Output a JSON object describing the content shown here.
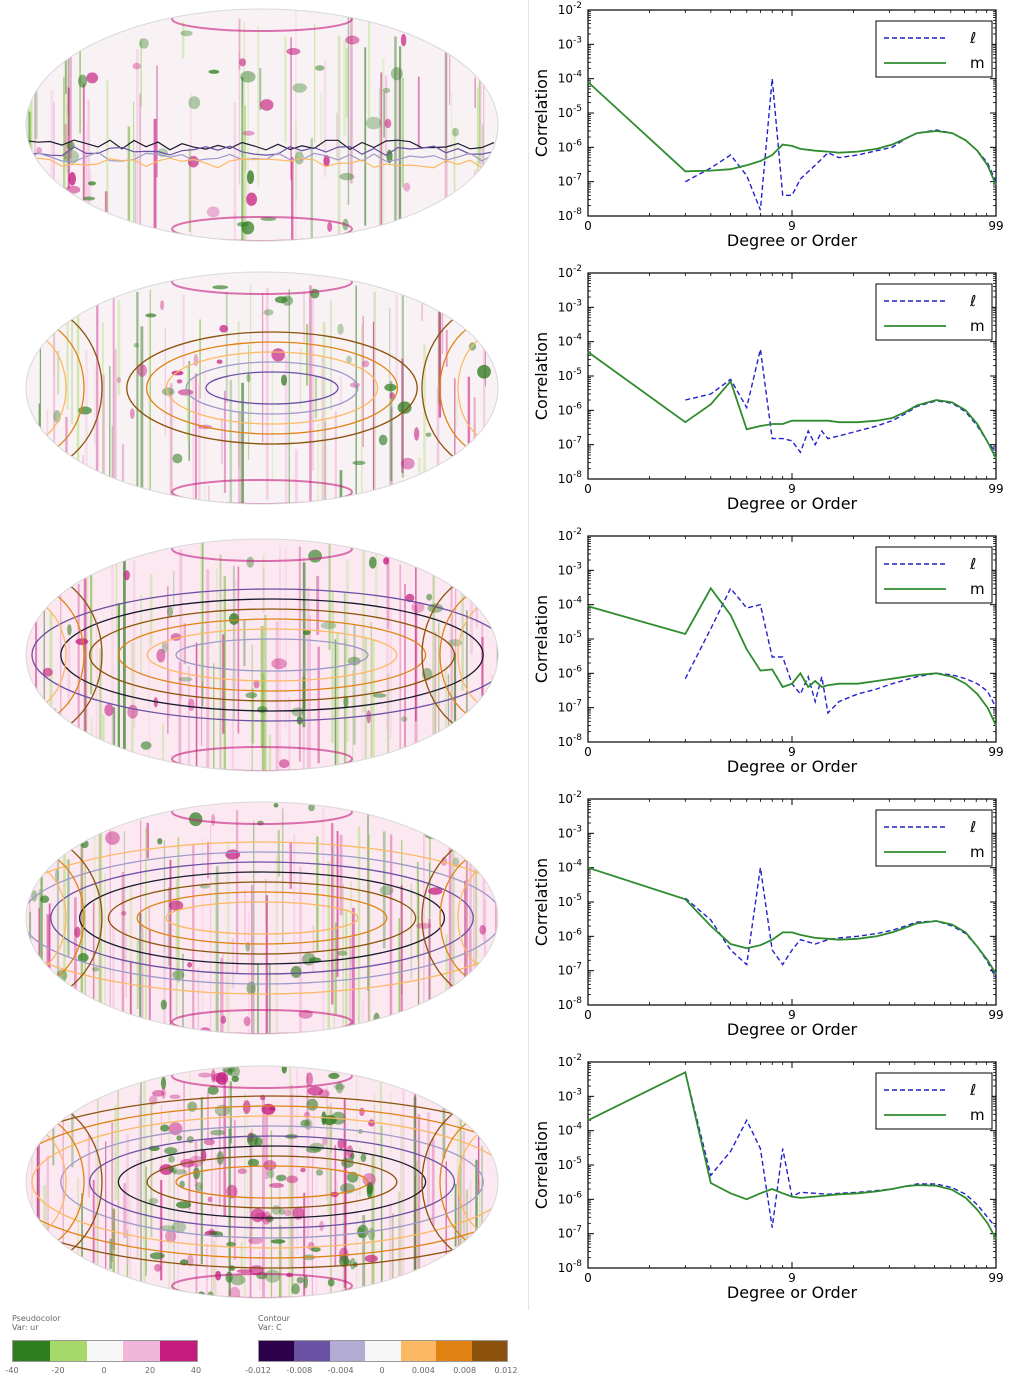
{
  "maps": {
    "count": 5,
    "pseudocolor": {
      "title": "Pseudocolor",
      "var": "Var: ur",
      "ticks": [
        "-40",
        "-20",
        "0",
        "20",
        "40"
      ],
      "colors": [
        "#2e7d1f",
        "#a6d96a",
        "#f7f7f7",
        "#f1b6da",
        "#c51b7d"
      ]
    },
    "contour": {
      "title": "Contour",
      "var": "Var: C",
      "ticks": [
        "-0.012",
        "-0.008",
        "-0.004",
        "0",
        "0.004",
        "0.008",
        "0.012"
      ],
      "colors": [
        "#2d004b",
        "#6a51a3",
        "#b2abd2",
        "#f7f7f7",
        "#fdb863",
        "#e08214",
        "#8c510a"
      ]
    }
  },
  "chart_data": [
    {
      "type": "line",
      "xlabel": "Degree or Order",
      "ylabel": "Correlation",
      "xscale": "log1p",
      "yscale": "log",
      "xticks": [
        "0",
        "9",
        "99"
      ],
      "yticks": [
        "10-8",
        "10-7",
        "10-6",
        "10-5",
        "10-4",
        "10-3",
        "10-2"
      ],
      "ylim": [
        1e-08,
        0.01
      ],
      "legend": "top-right",
      "series": [
        {
          "name": "ℓ",
          "style": "dashed",
          "color": "#2222cc",
          "x": [
            2,
            3,
            4,
            5,
            6,
            7,
            8,
            9,
            10,
            12,
            14,
            16,
            20,
            25,
            30,
            35,
            40,
            50,
            60,
            70,
            80,
            90,
            99
          ],
          "y": [
            1e-07,
            2.5e-07,
            6e-07,
            1.5e-07,
            1.5e-08,
            0.0001,
            4e-08,
            4e-08,
            1.2e-07,
            3e-07,
            7e-07,
            5e-07,
            6e-07,
            8e-07,
            1e-06,
            1.8e-06,
            2.6e-06,
            3.2e-06,
            2.6e-06,
            1.6e-06,
            8e-07,
            3.5e-07,
            1e-07
          ]
        },
        {
          "name": "m",
          "style": "solid",
          "color": "#2e8b2e",
          "x": [
            0,
            2,
            3,
            4,
            5,
            6,
            7,
            8,
            9,
            10,
            12,
            14,
            16,
            20,
            25,
            30,
            35,
            40,
            50,
            60,
            70,
            80,
            90,
            99
          ],
          "y": [
            8e-05,
            2e-07,
            2.1e-07,
            2.3e-07,
            3e-07,
            4e-07,
            6e-07,
            1.2e-06,
            1.1e-06,
            9e-07,
            8e-07,
            7.5e-07,
            7e-07,
            7.5e-07,
            9e-07,
            1.2e-06,
            1.8e-06,
            2.6e-06,
            3e-06,
            2.6e-06,
            1.6e-06,
            8e-07,
            3e-07,
            8e-08
          ]
        }
      ]
    },
    {
      "type": "line",
      "xlabel": "Degree or Order",
      "ylabel": "Correlation",
      "xscale": "log1p",
      "yscale": "log",
      "xticks": [
        "0",
        "9",
        "99"
      ],
      "yticks": [
        "10-8",
        "10-7",
        "10-6",
        "10-5",
        "10-4",
        "10-3",
        "10-2"
      ],
      "ylim": [
        1e-08,
        0.01
      ],
      "legend": "top-right",
      "series": [
        {
          "name": "ℓ",
          "style": "dashed",
          "color": "#2222cc",
          "x": [
            2,
            3,
            4,
            5,
            6,
            7,
            8,
            9,
            10,
            11,
            12,
            13,
            14,
            16,
            20,
            25,
            30,
            35,
            40,
            50,
            60,
            70,
            80,
            90,
            99
          ],
          "y": [
            2e-06,
            3e-06,
            8e-06,
            1.2e-06,
            6e-05,
            1.5e-07,
            1.5e-07,
            1.3e-07,
            6e-08,
            2.5e-07,
            1e-07,
            2.5e-07,
            1.5e-07,
            1.8e-07,
            2.5e-07,
            3.5e-07,
            5e-07,
            8e-07,
            1.3e-06,
            1.9e-06,
            1.6e-06,
            9e-07,
            3.5e-07,
            1.2e-07,
            6e-08
          ]
        },
        {
          "name": "m",
          "style": "solid",
          "color": "#2e8b2e",
          "x": [
            0,
            2,
            3,
            4,
            5,
            6,
            7,
            8,
            9,
            10,
            12,
            14,
            16,
            20,
            25,
            30,
            35,
            40,
            50,
            60,
            70,
            80,
            90,
            99
          ],
          "y": [
            5e-05,
            4.5e-07,
            1.5e-06,
            7e-06,
            2.8e-07,
            3.5e-07,
            4e-07,
            4e-07,
            5e-07,
            5e-07,
            5e-07,
            5e-07,
            4.5e-07,
            4.5e-07,
            5e-07,
            6e-07,
            9e-07,
            1.4e-06,
            2e-06,
            1.7e-06,
            1e-06,
            4e-07,
            1.2e-07,
            4e-08
          ]
        }
      ]
    },
    {
      "type": "line",
      "xlabel": "Degree or Order",
      "ylabel": "Correlation",
      "xscale": "log1p",
      "yscale": "log",
      "xticks": [
        "0",
        "9",
        "99"
      ],
      "yticks": [
        "10-8",
        "10-7",
        "10-6",
        "10-5",
        "10-4",
        "10-3",
        "10-2"
      ],
      "ylim": [
        1e-08,
        0.01
      ],
      "legend": "top-right",
      "series": [
        {
          "name": "ℓ",
          "style": "dashed",
          "color": "#2222cc",
          "x": [
            2,
            3,
            4,
            5,
            6,
            7,
            8,
            9,
            10,
            11,
            12,
            13,
            14,
            16,
            20,
            25,
            30,
            40,
            50,
            60,
            70,
            80,
            90,
            99
          ],
          "y": [
            7e-07,
            2e-05,
            0.0003,
            8e-05,
            0.0001,
            3e-06,
            3e-06,
            5e-07,
            2.5e-07,
            8e-07,
            1.5e-07,
            8e-07,
            7e-08,
            1.5e-07,
            2.5e-07,
            3.5e-07,
            5e-07,
            8e-07,
            1e-06,
            9e-07,
            7e-07,
            5e-07,
            3e-07,
            1e-07
          ]
        },
        {
          "name": "m",
          "style": "solid",
          "color": "#2e8b2e",
          "x": [
            0,
            2,
            3,
            4,
            5,
            6,
            7,
            8,
            9,
            10,
            11,
            12,
            13,
            14,
            16,
            20,
            25,
            30,
            40,
            50,
            60,
            70,
            80,
            90,
            99
          ],
          "y": [
            9e-05,
            1.4e-05,
            0.0003,
            5e-05,
            5e-06,
            1.2e-06,
            1.3e-06,
            4e-07,
            5e-07,
            1e-06,
            4e-07,
            6e-07,
            4e-07,
            4.5e-07,
            5e-07,
            5e-07,
            6e-07,
            7e-07,
            9e-07,
            1e-06,
            8e-07,
            5e-07,
            2.5e-07,
            1e-07,
            3e-08
          ]
        }
      ]
    },
    {
      "type": "line",
      "xlabel": "Degree or Order",
      "ylabel": "Correlation",
      "xscale": "log1p",
      "yscale": "log",
      "xticks": [
        "0",
        "9",
        "99"
      ],
      "yticks": [
        "10-8",
        "10-7",
        "10-6",
        "10-5",
        "10-4",
        "10-3",
        "10-2"
      ],
      "ylim": [
        1e-08,
        0.01
      ],
      "legend": "top-right",
      "series": [
        {
          "name": "ℓ",
          "style": "dashed",
          "color": "#2222cc",
          "x": [
            2,
            3,
            4,
            5,
            6,
            7,
            8,
            9,
            10,
            12,
            14,
            16,
            20,
            25,
            30,
            35,
            40,
            50,
            60,
            70,
            80,
            90,
            99
          ],
          "y": [
            1.3e-05,
            3e-06,
            4e-07,
            1.5e-07,
            0.0001,
            4e-07,
            1.5e-07,
            4e-07,
            8e-07,
            6e-07,
            8e-07,
            9e-07,
            1e-06,
            1.2e-06,
            1.5e-06,
            2e-06,
            2.6e-06,
            2.8e-06,
            2e-06,
            1.2e-06,
            5e-07,
            1.8e-07,
            6e-08
          ]
        },
        {
          "name": "m",
          "style": "solid",
          "color": "#2e8b2e",
          "x": [
            0,
            2,
            3,
            4,
            5,
            6,
            7,
            8,
            9,
            10,
            12,
            14,
            16,
            20,
            25,
            30,
            35,
            40,
            50,
            60,
            70,
            80,
            90,
            99
          ],
          "y": [
            0.0001,
            1.2e-05,
            2e-06,
            6e-07,
            4.5e-07,
            5.5e-07,
            8e-07,
            1.3e-06,
            1.3e-06,
            1.1e-06,
            9e-07,
            8.5e-07,
            8e-07,
            8.5e-07,
            1e-06,
            1.3e-06,
            1.8e-06,
            2.4e-06,
            2.8e-06,
            2.2e-06,
            1.3e-06,
            5e-07,
            2e-07,
            8e-08
          ]
        }
      ]
    },
    {
      "type": "line",
      "xlabel": "Degree or Order",
      "ylabel": "Correlation",
      "xscale": "log1p",
      "yscale": "log",
      "xticks": [
        "0",
        "9",
        "99"
      ],
      "yticks": [
        "10-8",
        "10-7",
        "10-6",
        "10-5",
        "10-4",
        "10-3",
        "10-2"
      ],
      "ylim": [
        1e-08,
        0.01
      ],
      "legend": "top-right",
      "series": [
        {
          "name": "ℓ",
          "style": "dashed",
          "color": "#2222cc",
          "x": [
            2,
            3,
            4,
            5,
            6,
            7,
            8,
            9,
            10,
            12,
            14,
            16,
            20,
            25,
            30,
            35,
            40,
            50,
            60,
            70,
            80,
            90,
            99
          ],
          "y": [
            0.005,
            5e-06,
            2.5e-05,
            0.0002,
            3e-05,
            1.5e-07,
            3e-05,
            1.2e-06,
            1.6e-06,
            1.5e-06,
            1.4e-06,
            1.5e-06,
            1.6e-06,
            1.8e-06,
            2e-06,
            2.4e-06,
            2.8e-06,
            2.8e-06,
            2.2e-06,
            1.4e-06,
            7e-07,
            3e-07,
            1.5e-07
          ]
        },
        {
          "name": "m",
          "style": "solid",
          "color": "#2e8b2e",
          "x": [
            0,
            2,
            3,
            4,
            5,
            6,
            7,
            8,
            9,
            10,
            12,
            14,
            16,
            20,
            25,
            30,
            35,
            40,
            50,
            60,
            70,
            80,
            90,
            99
          ],
          "y": [
            0.0002,
            0.005,
            3e-06,
            1.5e-06,
            1e-06,
            1.5e-06,
            2e-06,
            1.5e-06,
            1.2e-06,
            1.1e-06,
            1.2e-06,
            1.3e-06,
            1.4e-06,
            1.5e-06,
            1.7e-06,
            2e-06,
            2.4e-06,
            2.6e-06,
            2.5e-06,
            1.9e-06,
            1.1e-06,
            5e-07,
            2e-07,
            7e-08
          ]
        }
      ]
    }
  ]
}
